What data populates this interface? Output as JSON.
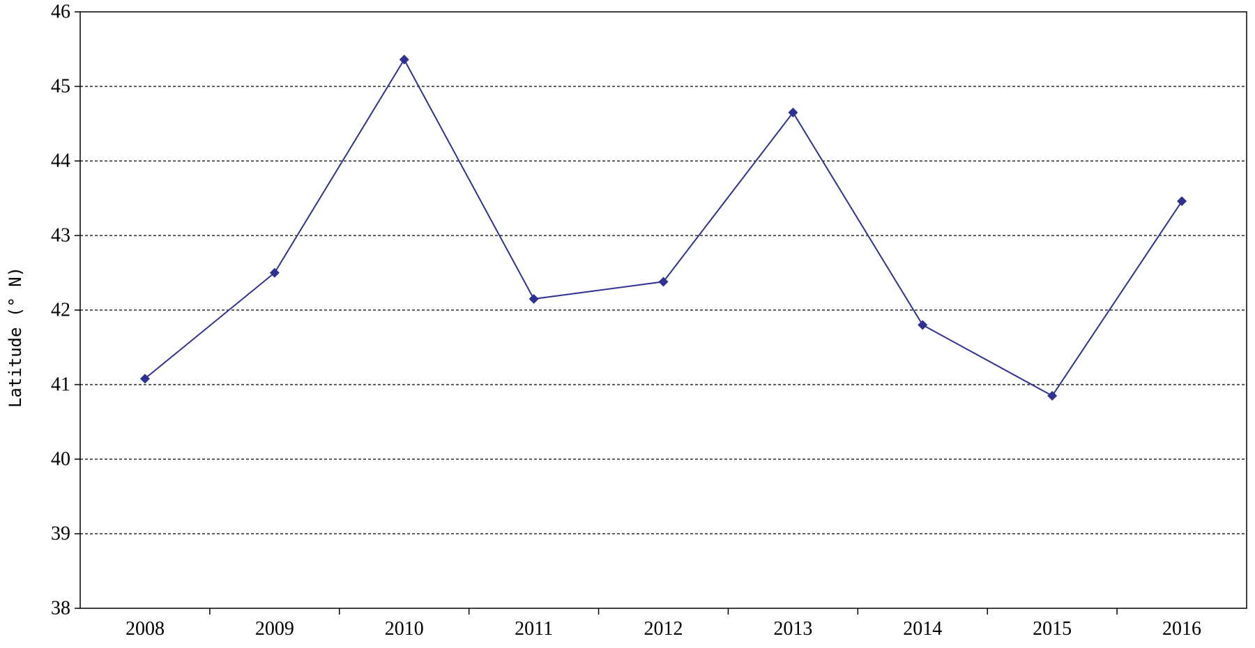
{
  "chart_data": {
    "type": "line",
    "title": "",
    "xlabel": "",
    "ylabel": "Latitude (° N)",
    "categories": [
      "2008",
      "2009",
      "2010",
      "2011",
      "2012",
      "2013",
      "2014",
      "2015",
      "2016"
    ],
    "series": [
      {
        "values": [
          41.08,
          42.5,
          45.36,
          42.15,
          42.38,
          44.65,
          41.8,
          40.85,
          43.46
        ],
        "color": "#2e3192",
        "marker": "diamond"
      }
    ],
    "ylim": [
      38,
      46
    ],
    "yticks": [
      "38",
      "39",
      "40",
      "41",
      "42",
      "43",
      "44",
      "45",
      "46"
    ],
    "grid": "horizontal-dashed",
    "legend": "none"
  }
}
